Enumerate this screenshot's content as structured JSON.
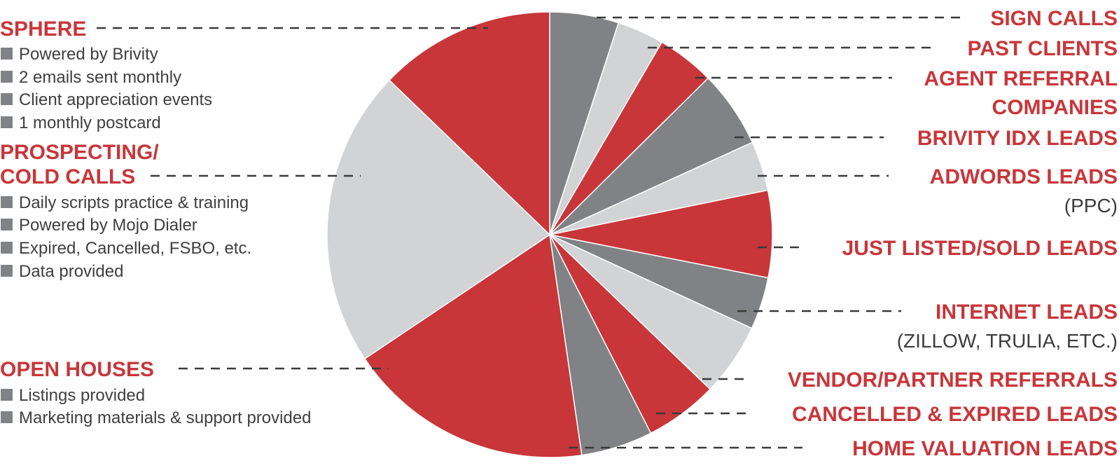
{
  "chart_data": {
    "type": "pie",
    "colors": {
      "red": "#c8363a",
      "gray_dark": "#818285",
      "gray_light": "#d2d3d5",
      "text_red": "#c8363a",
      "text_dark": "#3f3f3f"
    },
    "slices": [
      {
        "value": 5.0,
        "color": "gray_dark"
      },
      {
        "value": 3.4,
        "color": "gray_light"
      },
      {
        "value": 4.2,
        "color": "red"
      },
      {
        "value": 5.6,
        "color": "gray_dark"
      },
      {
        "value": 3.6,
        "color": "gray_light"
      },
      {
        "value": 6.3,
        "color": "red"
      },
      {
        "value": 3.8,
        "color": "gray_dark"
      },
      {
        "value": 5.3,
        "color": "gray_light"
      },
      {
        "value": 5.3,
        "color": "red"
      },
      {
        "value": 5.2,
        "color": "gray_dark"
      },
      {
        "value": 17.9,
        "color": "red"
      },
      {
        "value": 21.6,
        "color": "gray_light"
      },
      {
        "value": 12.8,
        "color": "red"
      }
    ],
    "left_groups": [
      {
        "title_lines": [
          "SPHERE"
        ],
        "bullets": [
          "Powered by Brivity",
          "2 emails sent monthly",
          "Client appreciation events",
          "1 monthly postcard"
        ]
      },
      {
        "title_lines": [
          "PROSPECTING/",
          "COLD CALLS"
        ],
        "bullets": [
          "Daily scripts practice & training",
          "Powered by Mojo Dialer",
          "Expired, Cancelled, FSBO, etc.",
          "Data provided"
        ]
      },
      {
        "title_lines": [
          "OPEN HOUSES"
        ],
        "bullets": [
          "Listings provided",
          "Marketing materials & support provided"
        ]
      }
    ],
    "right_labels": [
      {
        "lines": [
          "SIGN CALLS"
        ],
        "sub": ""
      },
      {
        "lines": [
          "PAST CLIENTS"
        ],
        "sub": ""
      },
      {
        "lines": [
          "AGENT REFERRAL",
          "COMPANIES"
        ],
        "sub": ""
      },
      {
        "lines": [
          "BRIVITY IDX LEADS"
        ],
        "sub": ""
      },
      {
        "lines": [
          "ADWORDS LEADS"
        ],
        "sub": "(PPC)"
      },
      {
        "lines": [
          "JUST LISTED/SOLD LEADS"
        ],
        "sub": ""
      },
      {
        "lines": [
          "INTERNET LEADS"
        ],
        "sub": "(ZILLOW, TRULIA, ETC.)"
      },
      {
        "lines": [
          "VENDOR/PARTNER REFERRALS"
        ],
        "sub": ""
      },
      {
        "lines": [
          "CANCELLED & EXPIRED LEADS"
        ],
        "sub": ""
      },
      {
        "lines": [
          "HOME VALUATION LEADS"
        ],
        "sub": ""
      }
    ]
  }
}
